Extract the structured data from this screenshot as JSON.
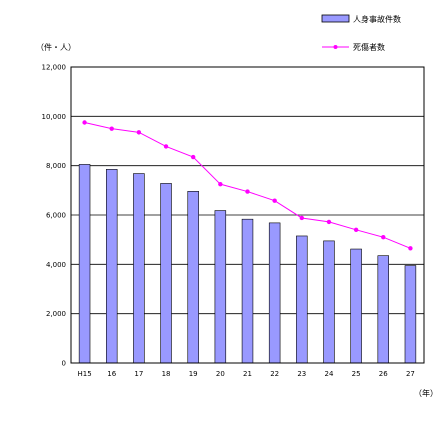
{
  "chart_data": {
    "type": "bar",
    "title": "",
    "y_unit_label": "（件・人）",
    "x_unit_label": "（年）",
    "categories": [
      "H15",
      "16",
      "17",
      "18",
      "19",
      "20",
      "21",
      "22",
      "23",
      "24",
      "25",
      "26",
      "27"
    ],
    "ylim": [
      0,
      12000
    ],
    "yticks": [
      0,
      2000,
      4000,
      6000,
      8000,
      10000,
      12000
    ],
    "ytick_labels": [
      "0",
      "2,000",
      "4,000",
      "6,000",
      "8,000",
      "10,000",
      "12,000"
    ],
    "grid": "horizontal",
    "legend_position": "top-right",
    "series": [
      {
        "name": "人身事故件数",
        "kind": "bar",
        "color": "#9999ff",
        "values": [
          8050,
          7850,
          7680,
          7280,
          6960,
          6180,
          5830,
          5680,
          5150,
          4950,
          4620,
          4350,
          3950
        ]
      },
      {
        "name": "死傷者数",
        "kind": "line",
        "color": "#ff00ff",
        "values": [
          9750,
          9500,
          9350,
          8780,
          8350,
          7250,
          6950,
          6580,
          5880,
          5720,
          5400,
          5100,
          4650
        ]
      }
    ]
  }
}
